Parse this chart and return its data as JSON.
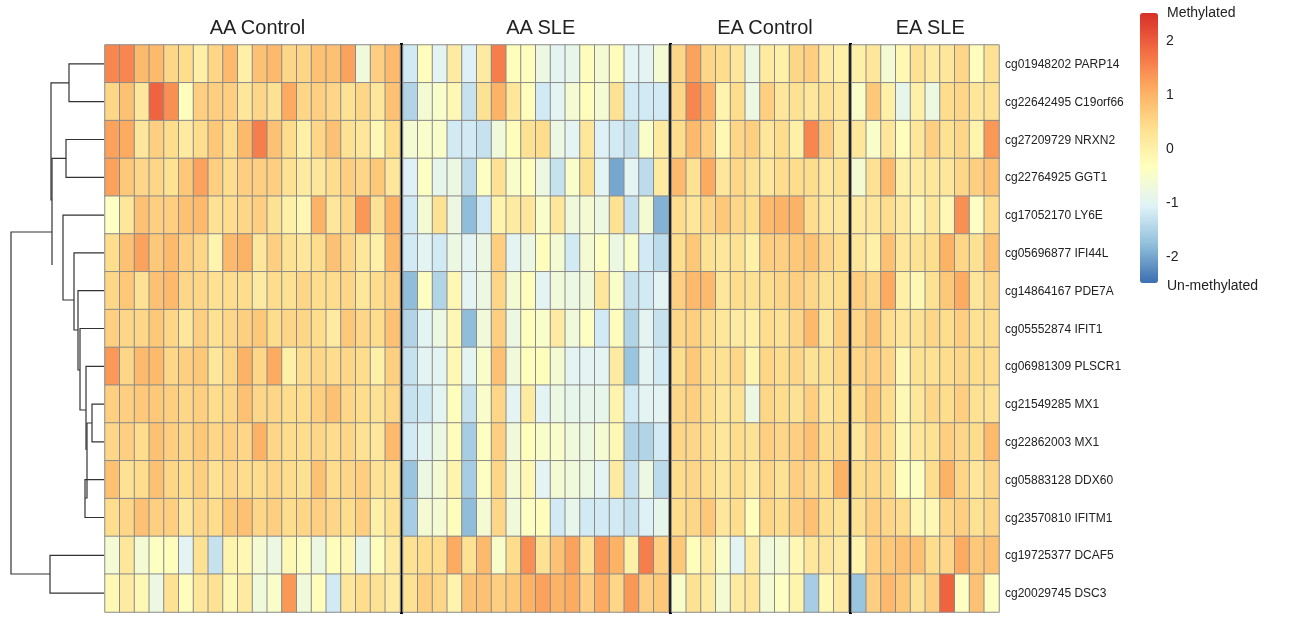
{
  "chart_data": {
    "type": "heatmap",
    "clim": [
      -2.5,
      2.5
    ],
    "cticks": [
      -2,
      -1,
      0,
      1,
      2
    ],
    "tick_labels": "y",
    "annotations": [
      "AA Control",
      "AA SLE",
      "EA Control",
      "EA SLE",
      "Methylated",
      "Un-methylated"
    ],
    "categories": [
      null,
      null,
      null,
      null,
      null,
      null,
      null,
      null,
      null,
      null,
      null,
      null,
      null,
      null,
      null,
      null,
      null,
      null,
      null,
      null,
      null,
      null,
      null,
      null,
      null,
      null,
      null,
      null,
      null,
      null,
      null,
      null,
      null,
      null,
      null,
      null,
      null,
      null,
      null,
      null,
      null,
      null,
      null,
      null,
      null,
      null,
      null,
      null,
      null,
      null,
      null,
      null,
      null,
      null,
      null,
      null,
      null,
      null,
      null,
      null
    ],
    "y_categories": [
      "cg01948202 PARP14",
      "cg22642495 C19orf66",
      "cg27209729 NRXN2",
      "cg22764925 GGT1",
      "cg17052170 LY6E",
      "cg05696877 IFI44L",
      "cg14864167 PDE7A",
      "cg05552874 IFIT1",
      "cg06981309 PLSCR1",
      "cg21549285 MX1",
      "cg22862003 MX1",
      "cg05883128 DDX60",
      "cg23570810 IFITM1",
      "cg19725377 DCAF5",
      "cg20029745 DSC3"
    ],
    "cells": [
      [
        1.5,
        1.5,
        0.9,
        0.9,
        0.5,
        0.4,
        0,
        0.5,
        0.9,
        0,
        0.8,
        0.9,
        0.5,
        0.5,
        0.8,
        0.8,
        1.2,
        -0.7,
        0.6,
        0.9,
        -1.2,
        -0.3,
        -1.0,
        0.1,
        -1.1,
        0.1,
        1.6,
        -0.3,
        -0.3,
        -0.8,
        -1.0,
        -0.9,
        -0.3,
        -0.6,
        -0.3,
        -1.0,
        -1.0,
        -0.6,
        0.5,
        1.2,
        0.5,
        0.4,
        0.2,
        -0.8,
        0.1,
        0,
        0.5,
        0.6,
        0.1,
        0,
        0,
        0.2,
        -0.6,
        -0.2,
        0.3,
        0.1,
        0.2,
        0.5,
        -0.3,
        0.3
      ],
      [
        0.5,
        0.8,
        0.2,
        1.9,
        1.4,
        -0.3,
        0.6,
        0.6,
        0.6,
        0.2,
        0.5,
        0.3,
        1.1,
        0.5,
        0.6,
        0.5,
        0.3,
        0.5,
        0.2,
        0.8,
        -1.5,
        -0.6,
        -0.5,
        -0.2,
        -1.3,
        0.3,
        1.0,
        0.2,
        -0.3,
        -1.2,
        -1.0,
        -0.6,
        -0.3,
        -0.6,
        0.3,
        -1.2,
        -1.2,
        -1.2,
        0.5,
        1.5,
        1.0,
        -0.1,
        0.4,
        -0.8,
        0.6,
        0.2,
        0.3,
        0.2,
        0.3,
        0.2,
        -0.5,
        0.7,
        0,
        -0.9,
        0,
        -0.8,
        0.4,
        0.5,
        0.2,
        0.3
      ],
      [
        1.2,
        1.1,
        0.2,
        0.6,
        0.4,
        0.1,
        0.4,
        0.7,
        0.4,
        0.9,
        1.6,
        0.8,
        0.4,
        0,
        0.5,
        0.8,
        0.3,
        0.2,
        -0.2,
        0.4,
        -0.6,
        -0.5,
        -0.5,
        -1.2,
        -1.2,
        -1.3,
        -0.7,
        -0.3,
        0.3,
        0.4,
        -0.8,
        -1.0,
        0.2,
        -1.1,
        -1.2,
        -1.3,
        -0.5,
        0.1,
        0.4,
        0.9,
        0.6,
        -0.2,
        0.5,
        0.6,
        0.2,
        0.4,
        0,
        1.5,
        0.6,
        0.2,
        0.2,
        -0.5,
        0.2,
        -0.3,
        0.2,
        0.6,
        0.3,
        0.5,
        -0.1,
        1.3
      ],
      [
        1.2,
        0.7,
        0.5,
        0.5,
        0.3,
        0.7,
        1.2,
        0.6,
        0.4,
        0.6,
        0.6,
        0.6,
        0.3,
        0.1,
        0.2,
        0.4,
        0.6,
        0.5,
        0.7,
        0.2,
        -1.1,
        -0.4,
        -0.9,
        -0.8,
        -1.4,
        -0.4,
        0.3,
        -0.5,
        -0.3,
        -0.8,
        -1.3,
        -0.5,
        0.3,
        -1.0,
        -2.0,
        -1.0,
        -1.4,
        0.1,
        0.9,
        0.3,
        1.1,
        0.2,
        0.5,
        0.3,
        0.2,
        0.4,
        0.4,
        0.4,
        0.2,
        0.3,
        -0.6,
        0.3,
        0.9,
        0,
        0.1,
        0.2,
        0.2,
        0.5,
        0.6,
        0.8
      ],
      [
        -0.4,
        0.2,
        0.8,
        0.6,
        0.6,
        0.8,
        0.9,
        0.3,
        0.4,
        0.5,
        0.6,
        0.3,
        0,
        -0.2,
        1.0,
        0.2,
        0.5,
        1.3,
        0.3,
        1.0,
        -1.2,
        -0.6,
        0.3,
        -0.8,
        -1.8,
        -1.2,
        -0.1,
        0.1,
        0.2,
        -0.5,
        0.2,
        -0.7,
        -0.6,
        -0.8,
        0.3,
        -1.3,
        -0.6,
        -1.9,
        0.4,
        0.2,
        0.5,
        0.7,
        0.5,
        0.4,
        0.9,
        1.0,
        1.0,
        0.4,
        0.2,
        0.2,
        0.1,
        0.2,
        0.4,
        0.1,
        -0.2,
        0.2,
        -0.2,
        1.4,
        -0.4,
        0.4
      ],
      [
        0.4,
        0.8,
        1.2,
        0.7,
        0.9,
        0.6,
        0.5,
        -0.1,
        0.9,
        1.0,
        0.2,
        0.6,
        0.3,
        0.2,
        0.4,
        0.8,
        0.5,
        0.2,
        0,
        0.9,
        -1.2,
        -1.0,
        -1.2,
        -0.8,
        -1.0,
        -0.8,
        0.6,
        -1.0,
        -0.8,
        -0.3,
        -0.6,
        -1.2,
        -0.6,
        -0.4,
        -0.8,
        -0.5,
        -1.2,
        -1.4,
        0.4,
        0.7,
        0.3,
        0.2,
        0.3,
        0,
        0.6,
        0.6,
        0.7,
        0.8,
        0.5,
        0.4,
        0.2,
        0,
        0.8,
        0.2,
        0.3,
        0.4,
        1.0,
        0.5,
        0.3,
        0.8
      ],
      [
        0.5,
        0.7,
        0.3,
        0.8,
        0.9,
        0.5,
        0.5,
        0.3,
        0.4,
        0.4,
        0.1,
        0.4,
        0.3,
        0.5,
        0.4,
        0.4,
        0.5,
        0.2,
        0.4,
        0.6,
        -1.8,
        -0.4,
        -1.5,
        -0.2,
        -1.0,
        -0.8,
        0.5,
        -0.6,
        -0.3,
        -1.0,
        -0.7,
        -0.8,
        -0.7,
        0.2,
        -0.5,
        -1.3,
        -1.2,
        -1.0,
        0.6,
        0.9,
        0.9,
        0.2,
        0.4,
        0.3,
        0.4,
        0.5,
        0.6,
        0.5,
        0.3,
        0.4,
        0.6,
        0.5,
        1.1,
        0,
        -0.2,
        0.3,
        0.7,
        1.1,
        0.2,
        0.5
      ],
      [
        0.6,
        0.5,
        0.5,
        0.7,
        0.5,
        0.2,
        0.6,
        0.3,
        0.5,
        0.6,
        0.7,
        0.4,
        0.5,
        0.5,
        0.4,
        0.1,
        0.7,
        0.5,
        0.4,
        0.8,
        -1.5,
        -1.0,
        -0.8,
        -0.2,
        -1.8,
        -0.7,
        0.6,
        -0.8,
        -0.3,
        -0.5,
        0.1,
        -0.7,
        -0.4,
        -1.2,
        -0.3,
        -1.5,
        -1.0,
        -1.3,
        0.5,
        0.6,
        0.4,
        0.2,
        0.1,
        0,
        0.4,
        0.3,
        0.5,
        0.9,
        0.2,
        0.6,
        0.5,
        0.8,
        0.4,
        0.2,
        0.3,
        0.5,
        0.4,
        0.6,
        0.3,
        0.4
      ],
      [
        1.3,
        0.5,
        0.9,
        0.9,
        0.5,
        0.6,
        0.7,
        0.2,
        0.5,
        1.0,
        0.5,
        1.1,
        0,
        0.4,
        0.5,
        0.4,
        0.5,
        0.4,
        0,
        0.6,
        -1.3,
        -1.0,
        -1.0,
        -0.2,
        -1.0,
        -0.5,
        0.8,
        -0.7,
        -0.3,
        -0.3,
        -0.6,
        -1.0,
        -1.0,
        -1.0,
        0.1,
        -1.7,
        -1.0,
        -1.2,
        0.4,
        0.7,
        0.4,
        0.3,
        0.5,
        -0.1,
        0.5,
        0.4,
        0.5,
        0.3,
        0.3,
        0.5,
        0.5,
        0.6,
        0.5,
        -0.2,
        0.3,
        0.3,
        0.4,
        0.5,
        0.4,
        0.4
      ],
      [
        0.6,
        0.6,
        0.7,
        0.7,
        0.6,
        0.5,
        0.6,
        0.4,
        0.5,
        0.8,
        0.5,
        0.5,
        0.4,
        0.4,
        0.6,
        0.8,
        0.5,
        0.4,
        0.3,
        0.5,
        -1.3,
        -1.2,
        -1.0,
        -0.3,
        -1.3,
        -0.5,
        0.5,
        -1.0,
        0.1,
        -1.0,
        -0.8,
        -0.9,
        -0.9,
        -0.9,
        -0.1,
        -1.2,
        -1.0,
        -1.0,
        0.5,
        0.6,
        0.4,
        0.2,
        0.3,
        -0.8,
        0.5,
        0.4,
        0.3,
        0.6,
        0.2,
        0.4,
        0.4,
        0.7,
        0.4,
        -0.2,
        0.2,
        0.5,
        0.4,
        0.6,
        0.3,
        0.3
      ],
      [
        0.5,
        0.6,
        0.4,
        0.8,
        0.6,
        0.5,
        0.7,
        0.5,
        0.6,
        0.5,
        1.0,
        0.5,
        0.4,
        0.4,
        0.5,
        0.4,
        0.5,
        0.3,
        0.2,
        0.9,
        -1.2,
        -1.0,
        -0.8,
        -0.3,
        -1.6,
        -0.4,
        0.6,
        -0.7,
        -0.3,
        -0.5,
        -0.5,
        -0.7,
        -0.8,
        -0.6,
        -0.2,
        -1.5,
        -1.5,
        -1.2,
        0.5,
        0.5,
        0.4,
        0.2,
        0.4,
        0.3,
        0.6,
        0.5,
        0.6,
        0.8,
        0.4,
        0.5,
        0.2,
        0.6,
        0.4,
        -0.2,
        0.2,
        0.3,
        0.6,
        0.5,
        0.4,
        0.9
      ],
      [
        0.8,
        0.3,
        0.4,
        0.8,
        0.5,
        0.4,
        0.6,
        0.3,
        0.5,
        0.4,
        0.4,
        0.5,
        0.4,
        0.3,
        0.8,
        0.4,
        0.5,
        0.6,
        0.3,
        0.3,
        -1.7,
        -0.8,
        -0.6,
        -0.1,
        -1.6,
        -0.4,
        0.5,
        -0.6,
        -0.2,
        -1.0,
        -0.6,
        -0.7,
        -0.8,
        -1.0,
        0.1,
        -1.3,
        -0.8,
        -1.4,
        0.4,
        0.5,
        0.4,
        0.2,
        0.4,
        0.1,
        0.5,
        0.3,
        0.6,
        0.5,
        0.4,
        1.0,
        0.4,
        0.5,
        0.4,
        -0.3,
        -0.4,
        0.4,
        1.0,
        0.5,
        0.2,
        0.5
      ],
      [
        0.4,
        0.5,
        0.8,
        0.6,
        0.6,
        0.2,
        0.5,
        0.4,
        0.7,
        0.8,
        0.5,
        0.6,
        0.4,
        0.5,
        0.6,
        0.5,
        0.4,
        0.6,
        0,
        0.3,
        -1.6,
        -0.6,
        -0.6,
        -0.3,
        -1.8,
        -0.6,
        0.5,
        -0.7,
        -0.4,
        -0.3,
        -1.2,
        -0.9,
        -1.2,
        -1.2,
        -1.2,
        -1.3,
        -1.1,
        -0.9,
        0.4,
        0.5,
        0.7,
        0.2,
        0.4,
        -0.3,
        0.5,
        0.4,
        0.6,
        0.8,
        0.4,
        0.3,
        0.3,
        0.6,
        0.5,
        0.4,
        -0.2,
        -0.2,
        0.5,
        0.6,
        0.3,
        0.5
      ],
      [
        -0.6,
        0.2,
        -0.6,
        -0.4,
        -0.3,
        -1.0,
        0.3,
        -1.3,
        -0.1,
        -0.2,
        -0.6,
        -0.8,
        -0.2,
        -0.4,
        -0.8,
        -0.3,
        -0.2,
        -0.9,
        -0.3,
        0.1,
        0.3,
        0.4,
        0.4,
        1.1,
        0.3,
        0.9,
        -0.5,
        0.4,
        1.4,
        0.3,
        0.8,
        1.2,
        0.3,
        1.3,
        1.0,
        0.0,
        1.6,
        0.6,
        0.7,
        -0.3,
        0.1,
        -0.5,
        -1.0,
        0.1,
        -0.7,
        -0.6,
        -0.2,
        0.2,
        0.2,
        0.1,
        -0.1,
        0.6,
        0.7,
        0.8,
        0.8,
        0.4,
        0.5,
        1.1,
        0.7,
        0.8
      ],
      [
        -0.2,
        0.1,
        -0.2,
        -0.8,
        0.3,
        -0.3,
        0.2,
        0.3,
        -0.2,
        0.1,
        -0.7,
        -0.5,
        1.3,
        -0.7,
        -0.3,
        -1.2,
        0.2,
        0.4,
        0.3,
        0.1,
        0.3,
        0.6,
        0.5,
        -0.1,
        0.8,
        0.8,
        0.6,
        0.7,
        1.0,
        1.2,
        1.0,
        1.1,
        0.6,
        1.1,
        0.5,
        1.3,
        0.6,
        0.7,
        -0.5,
        0.3,
        0.1,
        -0.6,
        0.1,
        0.2,
        -0.6,
        -0.4,
        -0.1,
        -1.6,
        -0.2,
        0.1,
        -1.7,
        0.6,
        0.9,
        0.7,
        0.3,
        0.6,
        1.9,
        -0.4,
        0.8,
        -0.4
      ]
    ]
  }
}
